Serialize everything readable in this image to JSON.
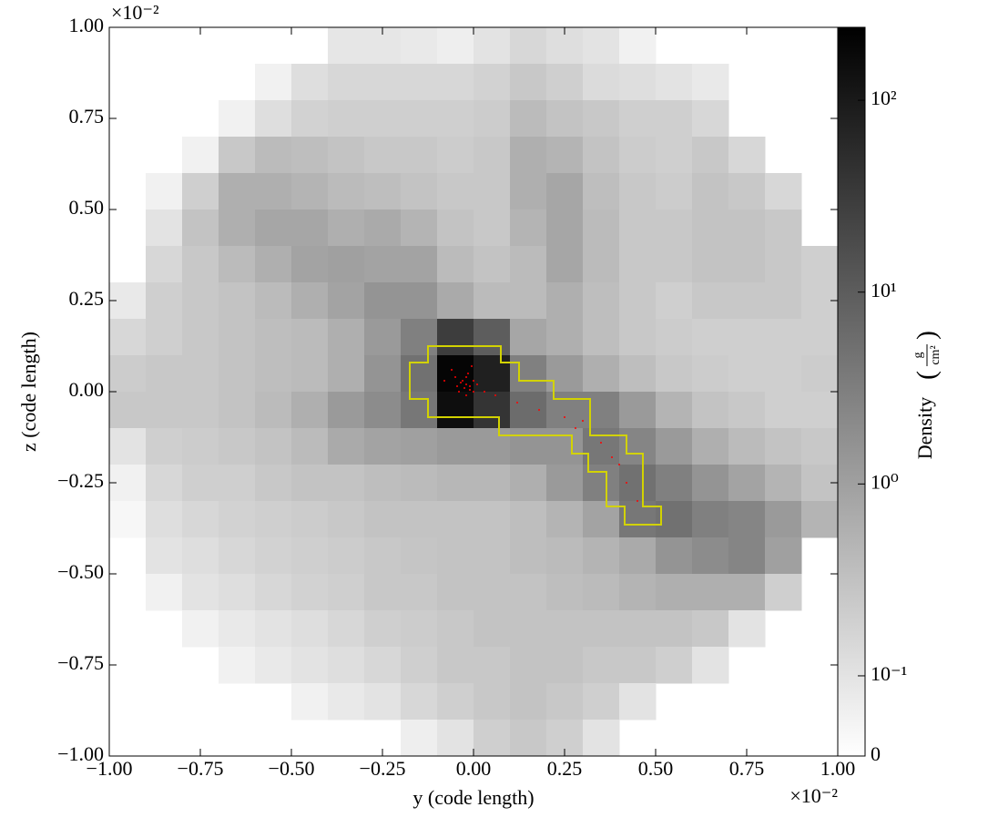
{
  "chart_data": {
    "type": "heatmap",
    "x_label": "y  (code length)",
    "y_label": "z  (code length)",
    "x_offset": "×10⁻²",
    "y_offset": "×10⁻²",
    "xlim": [
      -1,
      1
    ],
    "ylim": [
      -1,
      1
    ],
    "xticks": [
      {
        "value": -1,
        "label": "−1.00"
      },
      {
        "value": -0.75,
        "label": "−0.75"
      },
      {
        "value": -0.5,
        "label": "−0.50"
      },
      {
        "value": -0.25,
        "label": "−0.25"
      },
      {
        "value": 0,
        "label": "0.00"
      },
      {
        "value": 0.25,
        "label": "0.25"
      },
      {
        "value": 0.5,
        "label": "0.50"
      },
      {
        "value": 0.75,
        "label": "0.75"
      },
      {
        "value": 1,
        "label": "1.00"
      }
    ],
    "yticks": [
      {
        "value": -1,
        "label": "−1.00"
      },
      {
        "value": -0.75,
        "label": "−0.75"
      },
      {
        "value": -0.5,
        "label": "−0.50"
      },
      {
        "value": -0.25,
        "label": "−0.25"
      },
      {
        "value": 0,
        "label": "0.00"
      },
      {
        "value": 0.25,
        "label": "0.25"
      },
      {
        "value": 0.5,
        "label": "0.50"
      },
      {
        "value": 0.75,
        "label": "0.75"
      },
      {
        "value": 1,
        "label": "1.00"
      }
    ],
    "colorbar_label": "Density",
    "colorbar_units": {
      "numerator": "g",
      "denominator": "cm²"
    },
    "colorbar_scale": "symlog",
    "colormap": "gray_r",
    "zlim": [
      0,
      240
    ],
    "zticks": [
      0,
      {
        "value": 0.1,
        "label": "10⁻¹"
      },
      {
        "value": 1,
        "label": "10⁰"
      },
      {
        "value": 10,
        "label": "10¹"
      },
      {
        "value": 100,
        "label": "10²"
      }
    ],
    "density": [
      [
        null,
        null,
        null,
        null,
        null,
        null,
        0.09,
        0.09,
        0.08,
        0.06,
        0.1,
        0.15,
        0.12,
        0.1,
        0.05,
        null,
        null,
        null,
        null,
        null
      ],
      [
        null,
        null,
        null,
        null,
        0.05,
        0.12,
        0.15,
        0.15,
        0.15,
        0.15,
        0.18,
        0.25,
        0.2,
        0.13,
        0.12,
        0.1,
        0.08,
        null,
        null,
        null
      ],
      [
        null,
        null,
        null,
        0.05,
        0.12,
        0.18,
        0.2,
        0.2,
        0.2,
        0.2,
        0.22,
        0.4,
        0.3,
        0.25,
        0.2,
        0.2,
        0.15,
        null,
        null,
        null
      ],
      [
        null,
        null,
        0.05,
        0.25,
        0.4,
        0.35,
        0.3,
        0.25,
        0.25,
        0.22,
        0.25,
        0.6,
        0.5,
        0.3,
        0.22,
        0.2,
        0.25,
        0.15,
        null,
        null
      ],
      [
        null,
        0.05,
        0.2,
        0.6,
        0.6,
        0.5,
        0.4,
        0.35,
        0.3,
        0.25,
        0.25,
        0.6,
        0.8,
        0.35,
        0.25,
        0.22,
        0.3,
        0.25,
        0.15,
        null
      ],
      [
        null,
        0.1,
        0.3,
        0.6,
        0.8,
        0.8,
        0.6,
        0.7,
        0.5,
        0.3,
        0.25,
        0.5,
        0.8,
        0.4,
        0.25,
        0.25,
        0.3,
        0.3,
        0.25,
        null
      ],
      [
        null,
        0.15,
        0.25,
        0.4,
        0.6,
        0.9,
        1.0,
        0.9,
        0.9,
        0.4,
        0.3,
        0.4,
        0.8,
        0.4,
        0.25,
        0.25,
        0.3,
        0.3,
        0.25,
        0.2
      ],
      [
        0.08,
        0.2,
        0.25,
        0.3,
        0.4,
        0.6,
        0.9,
        1.5,
        1.5,
        0.7,
        0.4,
        0.4,
        0.6,
        0.35,
        0.25,
        0.2,
        0.25,
        0.25,
        0.25,
        0.2
      ],
      [
        0.15,
        0.2,
        0.25,
        0.3,
        0.35,
        0.4,
        0.6,
        1.2,
        3,
        30,
        10,
        0.8,
        0.6,
        0.35,
        0.25,
        0.22,
        0.2,
        0.2,
        0.2,
        0.2
      ],
      [
        0.22,
        0.25,
        0.25,
        0.3,
        0.35,
        0.4,
        0.6,
        1.5,
        5,
        200,
        80,
        3,
        1.2,
        0.6,
        0.35,
        0.25,
        0.22,
        0.2,
        0.2,
        0.22
      ],
      [
        0.25,
        0.25,
        0.25,
        0.3,
        0.4,
        0.6,
        1.2,
        2,
        4,
        150,
        40,
        6,
        3,
        3,
        1.2,
        0.5,
        0.3,
        0.25,
        0.2,
        0.2
      ],
      [
        0.1,
        0.2,
        0.22,
        0.25,
        0.3,
        0.4,
        0.7,
        0.9,
        1.0,
        1.2,
        1.2,
        1.5,
        1.5,
        4,
        2.5,
        1.2,
        0.6,
        0.4,
        0.3,
        0.25
      ],
      [
        0.05,
        0.15,
        0.2,
        0.2,
        0.25,
        0.3,
        0.3,
        0.35,
        0.4,
        0.45,
        0.45,
        0.6,
        1.2,
        3,
        5,
        3,
        1.5,
        0.9,
        0.5,
        0.3
      ],
      [
        0.03,
        0.12,
        0.15,
        0.18,
        0.2,
        0.22,
        0.25,
        0.3,
        0.3,
        0.3,
        0.3,
        0.35,
        0.5,
        0.9,
        4,
        5,
        3,
        2.5,
        1.2,
        0.5
      ],
      [
        null,
        0.1,
        0.12,
        0.15,
        0.18,
        0.2,
        0.22,
        0.25,
        0.28,
        0.3,
        0.3,
        0.35,
        0.4,
        0.5,
        0.7,
        1.5,
        2,
        2.5,
        1.0,
        null
      ],
      [
        null,
        0.05,
        0.1,
        0.12,
        0.15,
        0.18,
        0.2,
        0.25,
        0.25,
        0.3,
        0.3,
        0.3,
        0.35,
        0.4,
        0.5,
        0.6,
        0.6,
        0.6,
        0.2,
        null
      ],
      [
        null,
        null,
        0.05,
        0.08,
        0.1,
        0.12,
        0.15,
        0.2,
        0.22,
        0.25,
        0.3,
        0.3,
        0.3,
        0.3,
        0.3,
        0.3,
        0.25,
        0.1,
        null,
        null
      ],
      [
        null,
        null,
        null,
        0.05,
        0.08,
        0.1,
        0.12,
        0.15,
        0.2,
        0.25,
        0.25,
        0.3,
        0.3,
        0.25,
        0.25,
        0.2,
        0.1,
        null,
        null,
        null
      ],
      [
        null,
        null,
        null,
        null,
        null,
        0.05,
        0.08,
        0.1,
        0.15,
        0.2,
        0.25,
        0.3,
        0.25,
        0.2,
        0.1,
        null,
        null,
        null,
        null,
        null
      ],
      [
        null,
        null,
        null,
        null,
        null,
        null,
        null,
        null,
        0.06,
        0.1,
        0.2,
        0.25,
        0.2,
        0.1,
        null,
        null,
        null,
        null,
        null,
        null
      ]
    ],
    "contour": {
      "color": "#d2d200",
      "x": [
        -0.125,
        0.075,
        0.075,
        0.125,
        0.125,
        0.22,
        0.22,
        0.32,
        0.32,
        0.42,
        0.42,
        0.465,
        0.465,
        0.515,
        0.515,
        0.415,
        0.415,
        0.365,
        0.365,
        0.315,
        0.315,
        0.27,
        0.27,
        0.07,
        0.07,
        -0.125,
        -0.125,
        -0.175,
        -0.175,
        -0.125
      ],
      "y": [
        0.125,
        0.125,
        0.08,
        0.08,
        0.03,
        0.03,
        -0.02,
        -0.02,
        -0.12,
        -0.12,
        -0.17,
        -0.17,
        -0.315,
        -0.315,
        -0.365,
        -0.365,
        -0.315,
        -0.315,
        -0.22,
        -0.22,
        -0.17,
        -0.17,
        -0.12,
        -0.12,
        -0.07,
        -0.07,
        -0.02,
        -0.02,
        0.08,
        0.08
      ]
    },
    "particles": {
      "color": "#ff0000",
      "x": [
        -0.03,
        -0.02,
        -0.01,
        -0.025,
        -0.035,
        0.0,
        -0.015,
        -0.05,
        -0.04,
        -0.01,
        0.01,
        -0.02,
        -0.06,
        0.03,
        -0.005,
        0.06,
        0.12,
        0.18,
        0.25,
        0.28,
        0.3,
        0.35,
        0.4,
        0.42,
        0.45,
        0.38,
        -0.08,
        -0.02,
        0.0,
        -0.045
      ],
      "y": [
        0.03,
        0.02,
        0.015,
        0.01,
        0.025,
        0.03,
        0.05,
        0.04,
        0.0,
        0.005,
        0.02,
        -0.01,
        0.06,
        0.0,
        0.07,
        -0.01,
        -0.03,
        -0.05,
        -0.07,
        -0.1,
        -0.08,
        -0.14,
        -0.2,
        -0.25,
        -0.3,
        -0.18,
        0.03,
        0.04,
        0.0,
        0.015
      ]
    }
  }
}
